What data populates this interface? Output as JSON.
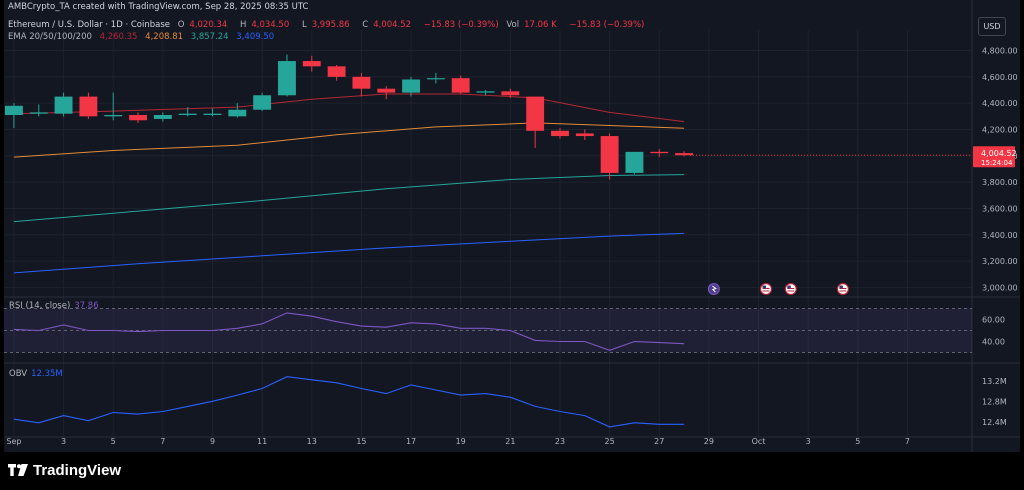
{
  "header": {
    "credit": "AMBCrypto_TA created with TradingView.com, Sep 28, 2025 08:35 UTC",
    "symbol": "Ethereum / U.S. Dollar · 1D · Coinbase",
    "ohlc": {
      "o_label": "O",
      "o": "4,020.34",
      "h_label": "H",
      "h": "4,034.50",
      "l_label": "L",
      "l": "3,995.86",
      "c_label": "C",
      "c": "4,004.52",
      "change": "−15.83 (−0.39%)",
      "vol_label": "Vol",
      "vol": "17.06 K",
      "vol_change": "−15.83 (−0.39%)"
    },
    "ema": {
      "label": "EMA 20/50/100/200",
      "v20": "4,260.35",
      "v50": "4,208.81",
      "v100": "3,857.24",
      "v200": "3,409.50"
    },
    "currency_button": "USD"
  },
  "colors": {
    "background": "#131722",
    "up": "#26a69a",
    "down": "#f23645",
    "ema20": "#b22833",
    "ema50": "#e58b38",
    "ema100": "#26a69a",
    "ema200": "#2962ff",
    "rsi": "#7e57c2",
    "obv": "#2962ff"
  },
  "price_badge": {
    "price": "4,004.52",
    "countdown": "15:24:04"
  },
  "rsi": {
    "title": "RSI (14, close)",
    "value": "37.86",
    "ticks": [
      "60.00",
      "40.00"
    ]
  },
  "obv": {
    "title": "OBV",
    "value": "12.35M",
    "ticks": [
      "13.2M",
      "12.8M",
      "12.4M"
    ]
  },
  "event_icons": [
    "crypto-event-icon",
    "us-flag-icon",
    "us-flag-icon",
    "us-flag-icon"
  ],
  "footer": {
    "brand": "TradingView"
  },
  "chart_data": {
    "type": "candlestick",
    "title": "",
    "y_ticks": [
      3000,
      3200,
      3400,
      3600,
      3800,
      4000,
      4200,
      4400,
      4600,
      4800
    ],
    "y_tick_labels": [
      "3,000.00",
      "3,200.00",
      "3,400.00",
      "3,600.00",
      "3,800.00",
      "4,000.00",
      "4,200.00",
      "4,400.00",
      "4,600.00",
      "4,800.00"
    ],
    "ylim": [
      2965,
      4880
    ],
    "x_tick_labels": [
      "Sep",
      "3",
      "5",
      "7",
      "9",
      "11",
      "13",
      "15",
      "17",
      "19",
      "21",
      "23",
      "25",
      "27",
      "29",
      "Oct",
      "3",
      "5",
      "7"
    ],
    "x_tick_days": [
      1,
      3,
      5,
      7,
      9,
      11,
      13,
      15,
      17,
      19,
      21,
      23,
      25,
      27,
      29,
      31,
      33,
      35,
      37
    ],
    "xlim": [
      0.6,
      39.6
    ],
    "candles": [
      {
        "day": 1,
        "o": 4310,
        "h": 4400,
        "l": 4210,
        "c": 4380
      },
      {
        "day": 2,
        "o": 4320,
        "h": 4390,
        "l": 4300,
        "c": 4330
      },
      {
        "day": 3,
        "o": 4320,
        "h": 4480,
        "l": 4300,
        "c": 4450
      },
      {
        "day": 4,
        "o": 4450,
        "h": 4480,
        "l": 4280,
        "c": 4300
      },
      {
        "day": 5,
        "o": 4300,
        "h": 4480,
        "l": 4270,
        "c": 4310
      },
      {
        "day": 6,
        "o": 4310,
        "h": 4330,
        "l": 4250,
        "c": 4270
      },
      {
        "day": 7,
        "o": 4280,
        "h": 4330,
        "l": 4260,
        "c": 4310
      },
      {
        "day": 8,
        "o": 4310,
        "h": 4370,
        "l": 4300,
        "c": 4320
      },
      {
        "day": 9,
        "o": 4310,
        "h": 4360,
        "l": 4300,
        "c": 4320
      },
      {
        "day": 10,
        "o": 4300,
        "h": 4400,
        "l": 4290,
        "c": 4350
      },
      {
        "day": 11,
        "o": 4350,
        "h": 4480,
        "l": 4340,
        "c": 4460
      },
      {
        "day": 12,
        "o": 4460,
        "h": 4770,
        "l": 4450,
        "c": 4720
      },
      {
        "day": 13,
        "o": 4720,
        "h": 4760,
        "l": 4640,
        "c": 4680
      },
      {
        "day": 14,
        "o": 4680,
        "h": 4690,
        "l": 4570,
        "c": 4600
      },
      {
        "day": 15,
        "o": 4600,
        "h": 4630,
        "l": 4450,
        "c": 4510
      },
      {
        "day": 16,
        "o": 4510,
        "h": 4530,
        "l": 4430,
        "c": 4480
      },
      {
        "day": 17,
        "o": 4480,
        "h": 4600,
        "l": 4450,
        "c": 4580
      },
      {
        "day": 18,
        "o": 4590,
        "h": 4630,
        "l": 4550,
        "c": 4590
      },
      {
        "day": 19,
        "o": 4590,
        "h": 4610,
        "l": 4470,
        "c": 4480
      },
      {
        "day": 20,
        "o": 4480,
        "h": 4500,
        "l": 4460,
        "c": 4490
      },
      {
        "day": 21,
        "o": 4490,
        "h": 4510,
        "l": 4440,
        "c": 4460
      },
      {
        "day": 22,
        "o": 4450,
        "h": 4450,
        "l": 4060,
        "c": 4190
      },
      {
        "day": 23,
        "o": 4190,
        "h": 4210,
        "l": 4130,
        "c": 4150
      },
      {
        "day": 24,
        "o": 4170,
        "h": 4200,
        "l": 4120,
        "c": 4150
      },
      {
        "day": 25,
        "o": 4150,
        "h": 4170,
        "l": 3820,
        "c": 3870
      },
      {
        "day": 26,
        "o": 3870,
        "h": 4030,
        "l": 3860,
        "c": 4030
      },
      {
        "day": 27,
        "o": 4030,
        "h": 4050,
        "l": 3990,
        "c": 4020
      },
      {
        "day": 28,
        "o": 4020.34,
        "h": 4034.5,
        "l": 3995.86,
        "c": 4004.52
      }
    ],
    "series": [
      {
        "name": "EMA 20",
        "color": "#b22833",
        "x": [
          1,
          5,
          10,
          13,
          16,
          19,
          22,
          25,
          28
        ],
        "values": [
          4320,
          4340,
          4370,
          4430,
          4470,
          4470,
          4440,
          4330,
          4260
        ]
      },
      {
        "name": "EMA 50",
        "color": "#e58b38",
        "x": [
          1,
          5,
          10,
          14,
          18,
          22,
          25,
          28
        ],
        "values": [
          3990,
          4040,
          4080,
          4160,
          4220,
          4250,
          4230,
          4210
        ]
      },
      {
        "name": "EMA 100",
        "color": "#26a69a",
        "x": [
          1,
          6,
          11,
          16,
          21,
          25,
          28
        ],
        "values": [
          3500,
          3580,
          3660,
          3750,
          3820,
          3850,
          3857
        ]
      },
      {
        "name": "EMA 200",
        "color": "#2962ff",
        "x": [
          1,
          6,
          11,
          16,
          21,
          25,
          28
        ],
        "values": [
          3110,
          3180,
          3240,
          3300,
          3350,
          3390,
          3410
        ]
      }
    ],
    "rsi_panel": {
      "ylim": [
        25,
        75
      ],
      "band": [
        30,
        70
      ],
      "midline": 50,
      "x": [
        1,
        2,
        3,
        4,
        5,
        6,
        7,
        8,
        9,
        10,
        11,
        12,
        13,
        14,
        15,
        16,
        17,
        18,
        19,
        20,
        21,
        22,
        23,
        24,
        25,
        26,
        27,
        28
      ],
      "values": [
        51,
        50,
        55,
        50,
        50,
        49,
        50,
        50,
        50,
        52,
        56,
        66,
        63,
        58,
        54,
        53,
        57,
        56,
        52,
        52,
        50,
        41,
        40,
        40,
        32,
        40,
        39,
        38
      ]
    },
    "obv_panel": {
      "ylim": [
        12.2,
        13.45
      ],
      "ticks": [
        13.2,
        12.8,
        12.4
      ],
      "x": [
        1,
        2,
        3,
        4,
        5,
        6,
        7,
        8,
        9,
        10,
        11,
        12,
        13,
        14,
        15,
        16,
        17,
        18,
        19,
        20,
        21,
        22,
        23,
        24,
        25,
        26,
        27,
        28
      ],
      "values": [
        12.45,
        12.38,
        12.52,
        12.42,
        12.58,
        12.55,
        12.6,
        12.7,
        12.8,
        12.92,
        13.05,
        13.28,
        13.22,
        13.16,
        13.05,
        12.95,
        13.12,
        13.02,
        12.92,
        12.95,
        12.88,
        12.7,
        12.6,
        12.52,
        12.3,
        12.38,
        12.35,
        12.35
      ]
    }
  }
}
